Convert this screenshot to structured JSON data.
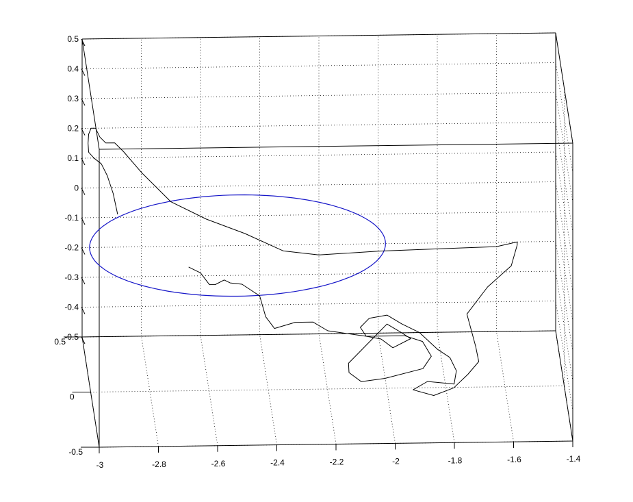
{
  "chart_data": {
    "type": "line",
    "view": "3d",
    "grid": true,
    "xlim": [
      -3,
      -1.4
    ],
    "ylim": [
      -0.5,
      0.5
    ],
    "zlim": [
      -0.5,
      0.5
    ],
    "x_ticks": [
      "-3",
      "-2.8",
      "-2.6",
      "-2.4",
      "-2.2",
      "-2",
      "-1.8",
      "-1.6",
      "-1.4"
    ],
    "y_ticks": [
      "-0.5",
      "0",
      "0.5"
    ],
    "z_ticks": [
      "-0.5",
      "-0.4",
      "-0.3",
      "-0.2",
      "-0.1",
      "0",
      "0.1",
      "0.2",
      "0.3",
      "0.4",
      "0.5"
    ],
    "colors": {
      "trajectory": "#000000",
      "ellipse": "#1515c8"
    },
    "ellipse": {
      "center": [
        -2.475,
        0.5,
        -0.2
      ],
      "x_semi_axis": 0.5,
      "z_semi_axis": 0.17
    },
    "series": [
      {
        "points": [
          [
            -2.88,
            0.5,
            -0.09
          ],
          [
            -2.895,
            0.5,
            -0.02
          ],
          [
            -2.915,
            0.5,
            0.04
          ],
          [
            -2.935,
            0.5,
            0.08
          ],
          [
            -2.96,
            0.5,
            0.1
          ],
          [
            -2.978,
            0.5,
            0.12
          ],
          [
            -2.98,
            0.5,
            0.15
          ],
          [
            -2.978,
            0.5,
            0.18
          ],
          [
            -2.97,
            0.5,
            0.2
          ],
          [
            -2.955,
            0.5,
            0.2
          ],
          [
            -2.94,
            0.5,
            0.17
          ],
          [
            -2.92,
            0.5,
            0.15
          ],
          [
            -2.89,
            0.5,
            0.15
          ],
          [
            -2.86,
            0.5,
            0.12
          ],
          [
            -2.8,
            0.5,
            0.05
          ],
          [
            -2.7,
            0.5,
            -0.05
          ],
          [
            -2.58,
            0.5,
            -0.11
          ],
          [
            -2.45,
            0.5,
            -0.16
          ],
          [
            -2.32,
            0.5,
            -0.22
          ],
          [
            -2.2,
            0.5,
            -0.235
          ],
          [
            -2.0,
            0.5,
            -0.225
          ],
          [
            -1.8,
            0.5,
            -0.22
          ],
          [
            -1.6,
            0.5,
            -0.215
          ],
          [
            -1.53,
            0.5,
            -0.2
          ],
          [
            -1.53,
            0.5,
            -0.21
          ],
          [
            -1.55,
            0.5,
            -0.28
          ],
          [
            -1.63,
            0.5,
            -0.35
          ],
          [
            -1.7,
            0.5,
            -0.44
          ],
          [
            -1.67,
            0.5,
            -0.55
          ],
          [
            -1.66,
            0.5,
            -0.6
          ],
          [
            -1.7,
            0.44,
            -0.62
          ],
          [
            -1.75,
            0.4,
            -0.65
          ],
          [
            -1.82,
            0.36,
            -0.66
          ],
          [
            -1.89,
            0.36,
            -0.64
          ],
          [
            -1.84,
            0.38,
            -0.62
          ],
          [
            -1.75,
            0.38,
            -0.63
          ],
          [
            -1.74,
            0.42,
            -0.6
          ],
          [
            -1.76,
            0.46,
            -0.57
          ],
          [
            -1.8,
            0.48,
            -0.55
          ],
          [
            -1.86,
            0.5,
            -0.5
          ],
          [
            -1.92,
            0.5,
            -0.47
          ],
          [
            -1.97,
            0.5,
            -0.44
          ],
          [
            -2.03,
            0.5,
            -0.45
          ],
          [
            -2.06,
            0.5,
            -0.48
          ],
          [
            -2.04,
            0.5,
            -0.51
          ],
          [
            -1.99,
            0.5,
            -0.52
          ],
          [
            -1.95,
            0.5,
            -0.55
          ],
          [
            -1.89,
            0.5,
            -0.52
          ],
          [
            -1.92,
            0.5,
            -0.5
          ],
          [
            -1.97,
            0.5,
            -0.47
          ],
          [
            -2.0,
            0.5,
            -0.5
          ],
          [
            -2.05,
            0.5,
            -0.55
          ],
          [
            -2.1,
            0.5,
            -0.6
          ],
          [
            -2.1,
            0.47,
            -0.62
          ],
          [
            -2.06,
            0.44,
            -0.64
          ],
          [
            -1.98,
            0.44,
            -0.63
          ],
          [
            -1.85,
            0.47,
            -0.61
          ],
          [
            -1.82,
            0.5,
            -0.58
          ],
          [
            -1.85,
            0.5,
            -0.53
          ],
          [
            -1.91,
            0.5,
            -0.51
          ],
          [
            -2.04,
            0.5,
            -0.51
          ],
          [
            -2.17,
            0.5,
            -0.49
          ],
          [
            -2.22,
            0.5,
            -0.46
          ],
          [
            -2.28,
            0.5,
            -0.46
          ],
          [
            -2.35,
            0.5,
            -0.48
          ],
          [
            -2.38,
            0.5,
            -0.44
          ],
          [
            -2.4,
            0.5,
            -0.37
          ],
          [
            -2.43,
            0.5,
            -0.35
          ],
          [
            -2.46,
            0.5,
            -0.33
          ],
          [
            -2.5,
            0.5,
            -0.325
          ],
          [
            -2.52,
            0.5,
            -0.315
          ],
          [
            -2.55,
            0.5,
            -0.33
          ],
          [
            -2.57,
            0.5,
            -0.33
          ],
          [
            -2.6,
            0.5,
            -0.29
          ],
          [
            -2.62,
            0.5,
            -0.28
          ],
          [
            -2.64,
            0.5,
            -0.27
          ]
        ]
      }
    ]
  }
}
